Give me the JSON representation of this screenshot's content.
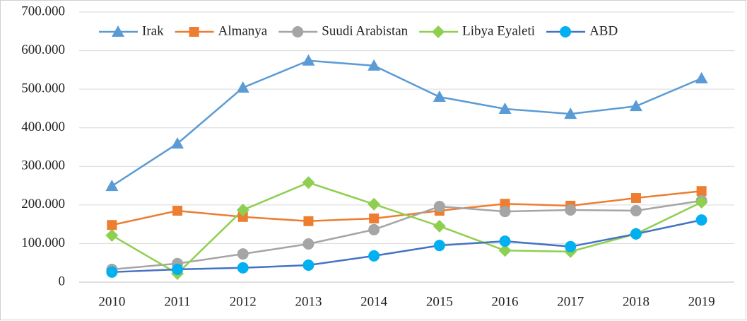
{
  "chart_data": {
    "type": "line",
    "categories": [
      "2010",
      "2011",
      "2012",
      "2013",
      "2014",
      "2015",
      "2016",
      "2017",
      "2018",
      "2019"
    ],
    "series": [
      {
        "name": "Irak",
        "color": "#5b9bd5",
        "line_color": "#5b9bd5",
        "marker": "triangle",
        "values": [
          249000,
          359000,
          504000,
          574000,
          561000,
          480000,
          449000,
          436000,
          456000,
          528000
        ]
      },
      {
        "name": "Almanya",
        "color": "#ed7d31",
        "line_color": "#ed7d31",
        "marker": "square",
        "values": [
          148000,
          185000,
          169000,
          158000,
          165000,
          185000,
          203000,
          198000,
          218000,
          236000
        ]
      },
      {
        "name": "Suudi Arabistan",
        "color": "#a5a5a5",
        "line_color": "#a5a5a5",
        "marker": "circle",
        "values": [
          33000,
          48000,
          73000,
          99000,
          136000,
          196000,
          183000,
          187000,
          185000,
          211000
        ]
      },
      {
        "name": "Libya Eyaleti",
        "color": "#8fcf4f",
        "line_color": "#8fcf4f",
        "marker": "diamond",
        "values": [
          121000,
          22000,
          187000,
          258000,
          202000,
          145000,
          82000,
          79000,
          125000,
          207000
        ]
      },
      {
        "name": "ABD",
        "color": "#00b0f0",
        "line_color": "#4472c4",
        "marker": "circle",
        "values": [
          26000,
          33000,
          37000,
          44000,
          68000,
          95000,
          106000,
          92000,
          125000,
          161000
        ]
      }
    ],
    "ylim": [
      0,
      700000
    ],
    "yticks": [
      0,
      {
        "value": 100000,
        "label": "100.000"
      },
      {
        "value": 200000,
        "label": "200.000"
      },
      {
        "value": 300000,
        "label": "300.000"
      },
      {
        "value": 400000,
        "label": "400.000"
      },
      {
        "value": 500000,
        "label": "500.000"
      },
      {
        "value": 600000,
        "label": "600.000"
      },
      {
        "value": 700000,
        "label": "700.000"
      }
    ],
    "grid": true,
    "legend": "top"
  }
}
